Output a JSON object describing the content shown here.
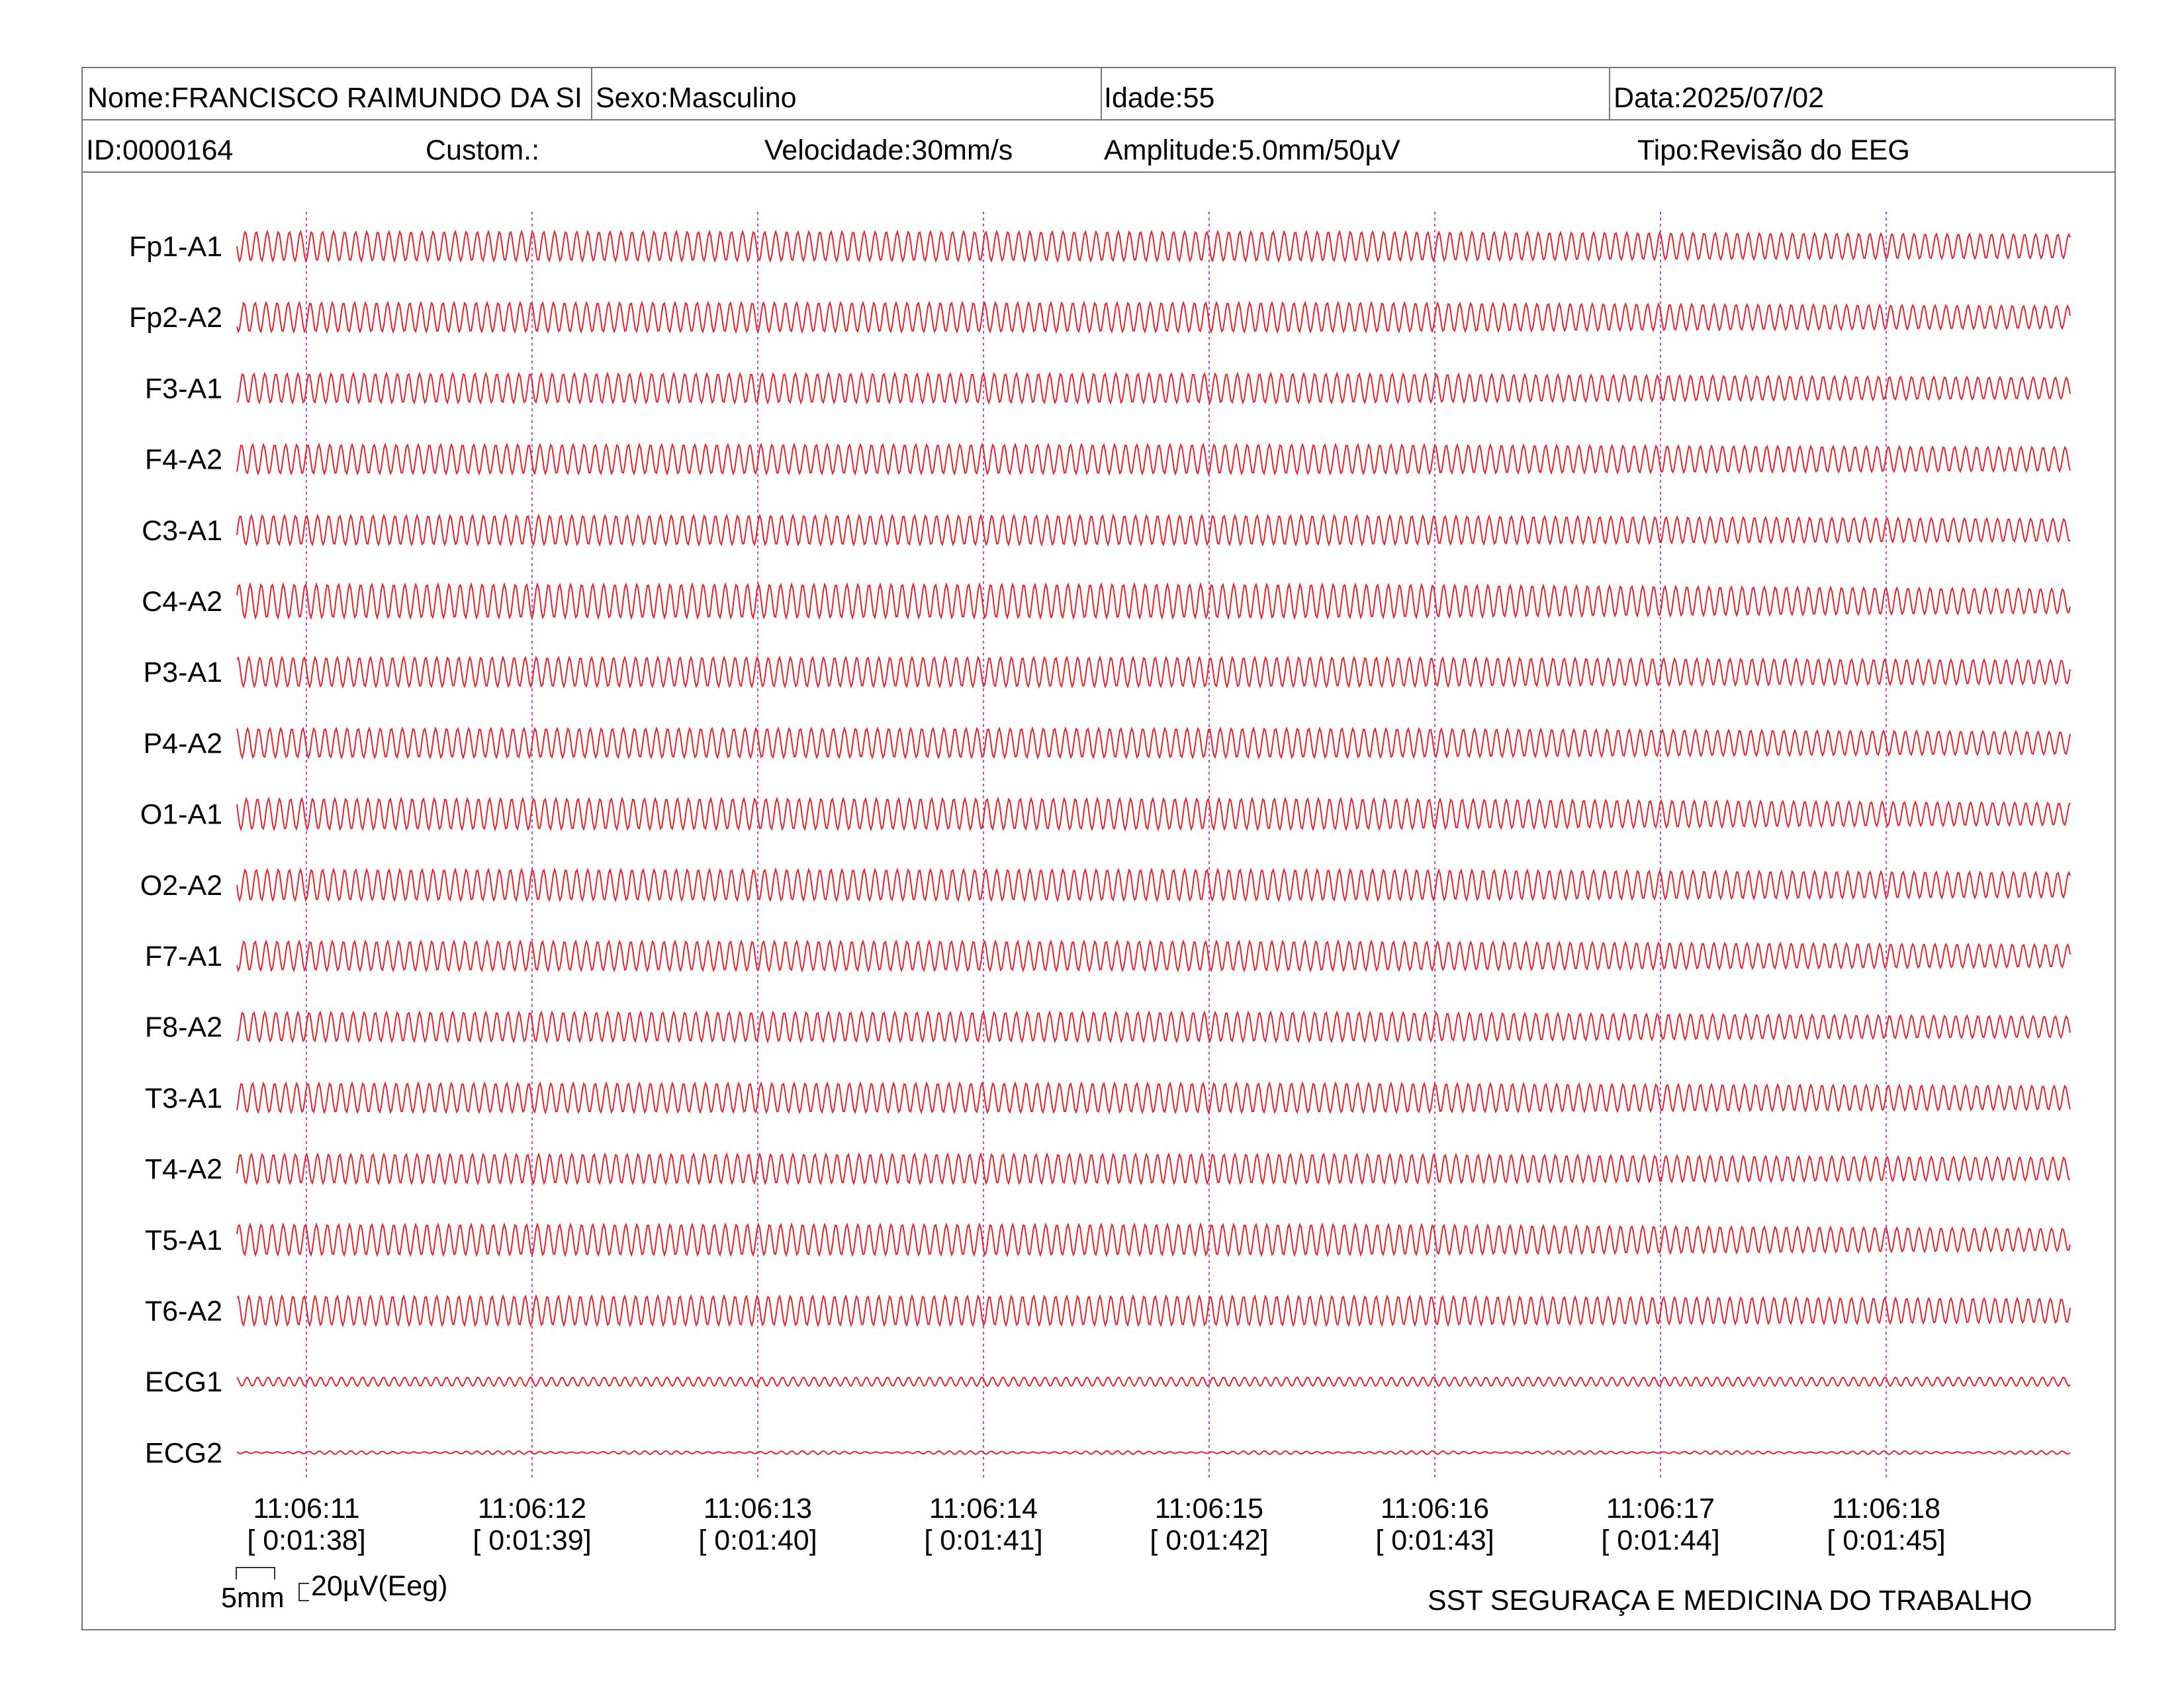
{
  "header": {
    "row1": {
      "nome": "Nome:FRANCISCO RAIMUNDO DA SI",
      "sexo": "Sexo:Masculino",
      "idade": "Idade:55",
      "data": "Data:2025/07/02"
    },
    "row2": {
      "id": "ID:0000164",
      "custom": "Custom.:",
      "velocidade": "Velocidade:30mm/s",
      "amplitude": "Amplitude:5.0mm/50µV",
      "tipo": "Tipo:Revisão do EEG"
    }
  },
  "channels": [
    {
      "label": "Fp1-A1",
      "amplitude": 1.0
    },
    {
      "label": "Fp2-A2",
      "amplitude": 1.0
    },
    {
      "label": "F3-A1",
      "amplitude": 1.0
    },
    {
      "label": "F4-A2",
      "amplitude": 1.0
    },
    {
      "label": "C3-A1",
      "amplitude": 1.0
    },
    {
      "label": "C4-A2",
      "amplitude": 1.15
    },
    {
      "label": "P3-A1",
      "amplitude": 1.0
    },
    {
      "label": "P4-A2",
      "amplitude": 1.0
    },
    {
      "label": "O1-A1",
      "amplitude": 1.05
    },
    {
      "label": "O2-A2",
      "amplitude": 1.05
    },
    {
      "label": "F7-A1",
      "amplitude": 1.0
    },
    {
      "label": "F8-A2",
      "amplitude": 1.0
    },
    {
      "label": "T3-A1",
      "amplitude": 1.0
    },
    {
      "label": "T4-A2",
      "amplitude": 1.0
    },
    {
      "label": "T5-A1",
      "amplitude": 1.05
    },
    {
      "label": "T6-A2",
      "amplitude": 1.0
    },
    {
      "label": "ECG1",
      "amplitude": 0.3
    },
    {
      "label": "ECG2",
      "amplitude": 0.12
    }
  ],
  "time_marks": [
    {
      "clock": "11:06:11",
      "elapsed": "[ 0:01:38]"
    },
    {
      "clock": "11:06:12",
      "elapsed": "[ 0:01:39]"
    },
    {
      "clock": "11:06:13",
      "elapsed": "[ 0:01:40]"
    },
    {
      "clock": "11:06:14",
      "elapsed": "[ 0:01:41]"
    },
    {
      "clock": "11:06:15",
      "elapsed": "[ 0:01:42]"
    },
    {
      "clock": "11:06:16",
      "elapsed": "[ 0:01:43]"
    },
    {
      "clock": "11:06:17",
      "elapsed": "[ 0:01:44]"
    },
    {
      "clock": "11:06:18",
      "elapsed": "[ 0:01:45]"
    }
  ],
  "scale": {
    "time_label": "5mm",
    "amplitude_label": "20µV(Eeg)"
  },
  "footer": {
    "organization": "SST SEGURAÇA E MEDICINA DO TRABALHO"
  },
  "colors": {
    "trace": "#e8202a",
    "time_marker": "#cc44cc",
    "border": "#777777"
  }
}
